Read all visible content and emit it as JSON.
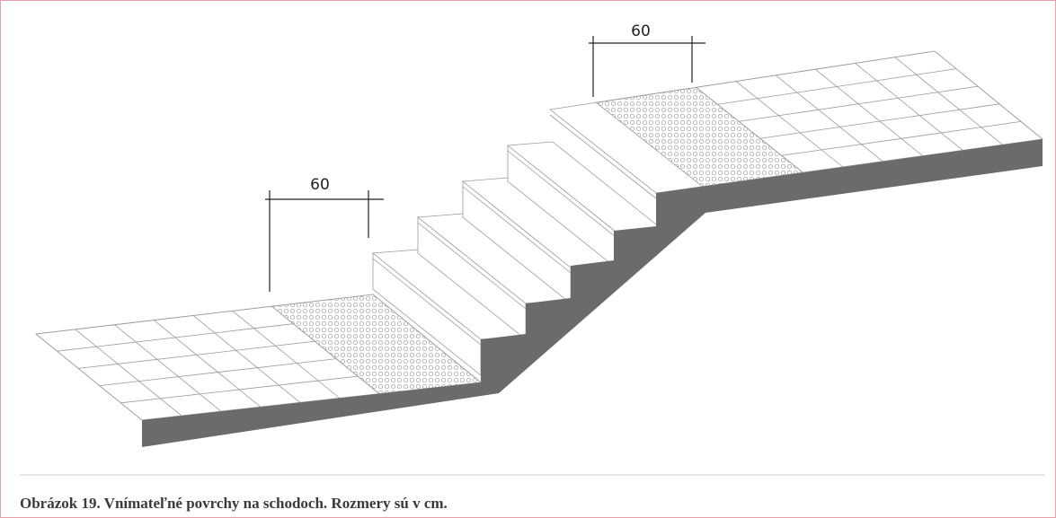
{
  "dimensions": [
    {
      "label": "60"
    },
    {
      "label": "60"
    }
  ],
  "caption": "Obrázok 19. Vnímateľné povrchy na schodoch. Rozmery sú v cm."
}
